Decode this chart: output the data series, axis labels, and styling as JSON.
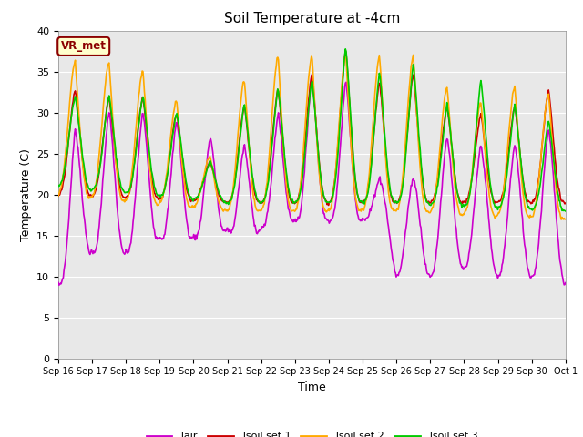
{
  "title": "Soil Temperature at -4cm",
  "xlabel": "Time",
  "ylabel": "Temperature (C)",
  "ylim": [
    0,
    40
  ],
  "background_color": "#e8e8e8",
  "figure_color": "#ffffff",
  "grid_color": "#ffffff",
  "legend_label": "VR_met",
  "series": {
    "Tair": {
      "color": "#cc00cc",
      "linewidth": 1.2
    },
    "Tsoil set 1": {
      "color": "#cc0000",
      "linewidth": 1.2
    },
    "Tsoil set 2": {
      "color": "#ffaa00",
      "linewidth": 1.2
    },
    "Tsoil set 3": {
      "color": "#00cc00",
      "linewidth": 1.2
    }
  },
  "x_tick_labels": [
    "Sep 16",
    "Sep 17",
    "Sep 18",
    "Sep 19",
    "Sep 20",
    "Sep 21",
    "Sep 22",
    "Sep 23",
    "Sep 24",
    "Sep 25",
    "Sep 26",
    "Sep 27",
    "Sep 28",
    "Sep 29",
    "Sep 30",
    "Oct 1"
  ],
  "y_tick_values": [
    0,
    5,
    10,
    15,
    20,
    25,
    30,
    35,
    40
  ]
}
